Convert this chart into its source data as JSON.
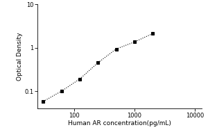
{
  "x": [
    31.25,
    62.5,
    125,
    250,
    500,
    1000,
    2000
  ],
  "y": [
    0.058,
    0.1,
    0.19,
    0.45,
    0.93,
    1.35,
    2.1
  ],
  "xlim": [
    25,
    13000
  ],
  "ylim": [
    0.04,
    10
  ],
  "xlabel": "Human AR concentration(pg/mL)",
  "ylabel": "Optical Density",
  "line_color": "black",
  "line_style": "dotted",
  "marker": "s",
  "marker_color": "black",
  "marker_size": 3.5,
  "background_color": "#ffffff",
  "xlabel_fontsize": 6.5,
  "ylabel_fontsize": 6.5,
  "tick_fontsize": 6,
  "xticks": [
    100,
    1000,
    10000
  ],
  "yticks": [
    0.1,
    1,
    10
  ]
}
